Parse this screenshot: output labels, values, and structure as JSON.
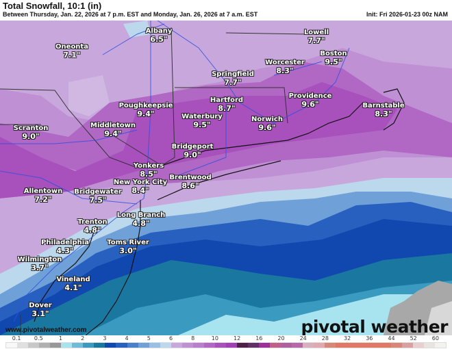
{
  "header": {
    "title": "Total Snowfall, 10:1 (in)",
    "subtitle": "Between Thursday, Jan. 22, 2026 at 7 p.m. EST and Monday, Jan. 26, 2026 at 7 a.m. EST",
    "init": "Init: Fri 2026-01-23 00z NAM"
  },
  "cities": [
    {
      "name": "Albany",
      "value": "6.5\""
    },
    {
      "name": "Oneonta",
      "value": "7.1\""
    },
    {
      "name": "Lowell",
      "value": "7.7\""
    },
    {
      "name": "Boston",
      "value": "9.5\""
    },
    {
      "name": "Worcester",
      "value": "8.3\""
    },
    {
      "name": "Springfield",
      "value": "7.7\""
    },
    {
      "name": "Hartford",
      "value": "8.7\""
    },
    {
      "name": "Poughkeepsie",
      "value": "9.4\""
    },
    {
      "name": "Providence",
      "value": "9.6\""
    },
    {
      "name": "Barnstable",
      "value": "8.3\""
    },
    {
      "name": "Waterbury",
      "value": "9.5\""
    },
    {
      "name": "Norwich",
      "value": "9.6\""
    },
    {
      "name": "Middletown",
      "value": "9.4\""
    },
    {
      "name": "Scranton",
      "value": "9.0\""
    },
    {
      "name": "Bridgeport",
      "value": "9.0\""
    },
    {
      "name": "Yonkers",
      "value": "8.5\""
    },
    {
      "name": "Brentwood",
      "value": "8.6\""
    },
    {
      "name": "New York City",
      "value": "8.4\""
    },
    {
      "name": "Allentown",
      "value": "7.2\""
    },
    {
      "name": "Bridgewater",
      "value": "7.5\""
    },
    {
      "name": "Long Branch",
      "value": "4.8\""
    },
    {
      "name": "Trenton",
      "value": "4.8\""
    },
    {
      "name": "Philadelphia",
      "value": "4.3\""
    },
    {
      "name": "Toms River",
      "value": "3.0\""
    },
    {
      "name": "Wilmington",
      "value": "3.7\""
    },
    {
      "name": "Vineland",
      "value": "4.1\""
    },
    {
      "name": "Dover",
      "value": "3.1\""
    }
  ],
  "watermark": {
    "url": "www.pivotalweather.com",
    "logo": "pivotal weather"
  },
  "colorbar": {
    "labels": [
      "0.1",
      "0.5",
      "1",
      "2",
      "3",
      "4",
      "5",
      "6",
      "8",
      "10",
      "12",
      "16",
      "20",
      "24",
      "28",
      "32",
      "36",
      "44",
      "52",
      "60"
    ],
    "colors": [
      "#f8f8f8",
      "#e0e0e0",
      "#c8c8c8",
      "#b0b0b0",
      "#989898",
      "#a8e4f0",
      "#70bcd8",
      "#3a9ac0",
      "#1a78a0",
      "#1048b0",
      "#2860c0",
      "#4880cc",
      "#70a0d8",
      "#98c0e4",
      "#bcd8ec",
      "#c8a8dc",
      "#c090d4",
      "#b880cc",
      "#b068c4",
      "#a850bc",
      "#a040b4",
      "#4c2048",
      "#603068",
      "#9c3098",
      "#c06088",
      "#b060a0",
      "#b868a8",
      "#d8b0c0",
      "#e0a8b0",
      "#d88878",
      "#e07868",
      "#e07868",
      "#e07868",
      "#e07868",
      "#e07868",
      "#d88878",
      "#d8a0a0",
      "#e8d0d0",
      "#e8e4e0",
      "#f2f2ee"
    ]
  }
}
